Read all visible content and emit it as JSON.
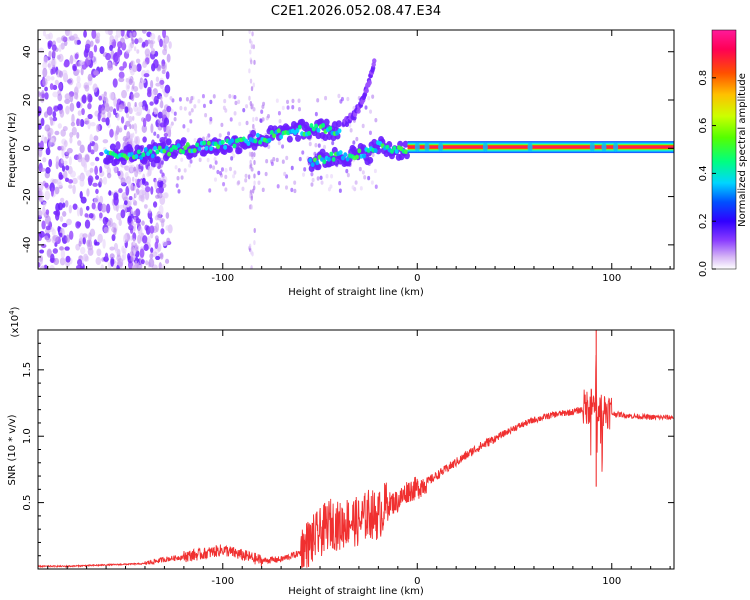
{
  "title": "C2E1.2026.052.08.47.E34",
  "chart_data": [
    {
      "type": "heatmap",
      "name": "spectrogram",
      "xlabel": "Height of straight line (km)",
      "ylabel": "Frequency (Hz)",
      "xlim": [
        -195,
        132
      ],
      "ylim": [
        -50,
        49
      ],
      "xticks": [
        -100,
        0,
        100
      ],
      "xtick_labels": [
        "-100",
        "0",
        "100"
      ],
      "yticks": [
        -40,
        -20,
        0,
        20,
        40
      ],
      "ytick_labels": [
        "-40",
        "-20",
        "0",
        "20",
        "40"
      ],
      "colorbar": {
        "label": "Normalized spectral amplitude",
        "range": [
          0,
          1
        ],
        "ticks": [
          0.0,
          0.2,
          0.4,
          0.6,
          0.8
        ],
        "tick_labels": [
          "0.0",
          "0.2",
          "0.4",
          "0.6",
          "0.8"
        ],
        "colormap": [
          "#ffffff",
          "#d6b6f5",
          "#8a3dff",
          "#3000ff",
          "#0050ff",
          "#00d5ff",
          "#00ff80",
          "#55ff00",
          "#ccff00",
          "#ffc000",
          "#ff5000",
          "#ff0055",
          "#ff1a9a"
        ]
      },
      "features": {
        "noise_band_x": [
          -195,
          -135
        ],
        "vertical_stripes_x": [
          -146,
          -85
        ],
        "main_trace": [
          {
            "x": -160,
            "f": -3
          },
          {
            "x": -140,
            "f": -2
          },
          {
            "x": -120,
            "f": 0
          },
          {
            "x": -100,
            "f": 1
          },
          {
            "x": -80,
            "f": 4
          },
          {
            "x": -65,
            "f": 7
          },
          {
            "x": -50,
            "f": 8
          },
          {
            "x": -40,
            "f": 7
          }
        ],
        "branch_trace": [
          {
            "x": -55,
            "f": -6
          },
          {
            "x": -45,
            "f": -4
          },
          {
            "x": -35,
            "f": -3
          },
          {
            "x": -25,
            "f": -2
          },
          {
            "x": -20,
            "f": 1
          },
          {
            "x": -12,
            "f": -1
          },
          {
            "x": -5,
            "f": 0
          }
        ],
        "rising_trace": [
          {
            "x": -38,
            "f": 10
          },
          {
            "x": -32,
            "f": 14
          },
          {
            "x": -27,
            "f": 22
          },
          {
            "x": -24,
            "f": 30
          },
          {
            "x": -22,
            "f": 35
          }
        ],
        "steady_line": {
          "x_start": -5,
          "x_end": 132,
          "f": 0.5
        }
      }
    },
    {
      "type": "line",
      "name": "snr",
      "xlabel": "Height of straight line (km)",
      "ylabel": "SNR (10 * v/v)",
      "scale_label": "(x10",
      "scale_exponent": "4",
      "xlim": [
        -195,
        132
      ],
      "ylim": [
        0,
        1.8
      ],
      "xticks": [
        -100,
        0,
        100
      ],
      "xtick_labels": [
        "-100",
        "0",
        "100"
      ],
      "yticks": [
        0.5,
        1.0,
        1.5
      ],
      "ytick_labels": [
        "0.5",
        "1.0",
        "1.5"
      ],
      "line_color": "#f03030",
      "series": [
        {
          "name": "SNR",
          "x": [
            -195,
            -180,
            -160,
            -140,
            -130,
            -120,
            -110,
            -100,
            -90,
            -80,
            -70,
            -60,
            -50,
            -45,
            -40,
            -35,
            -30,
            -25,
            -20,
            -15,
            -10,
            -5,
            0,
            5,
            10,
            20,
            30,
            40,
            50,
            60,
            70,
            80,
            85,
            90,
            92,
            95,
            100,
            110,
            120,
            132
          ],
          "y": [
            0.02,
            0.02,
            0.03,
            0.04,
            0.07,
            0.09,
            0.11,
            0.14,
            0.1,
            0.06,
            0.07,
            0.12,
            0.25,
            0.33,
            0.3,
            0.35,
            0.33,
            0.4,
            0.38,
            0.48,
            0.5,
            0.58,
            0.6,
            0.65,
            0.7,
            0.8,
            0.9,
            0.98,
            1.06,
            1.12,
            1.16,
            1.18,
            1.2,
            1.22,
            1.18,
            1.2,
            1.17,
            1.15,
            1.14,
            1.14
          ]
        }
      ],
      "annotations": [
        {
          "x": 92,
          "y": 1.82,
          "kind": "spike-high"
        },
        {
          "x": 92,
          "y": 0.62,
          "kind": "spike-low"
        }
      ]
    }
  ]
}
